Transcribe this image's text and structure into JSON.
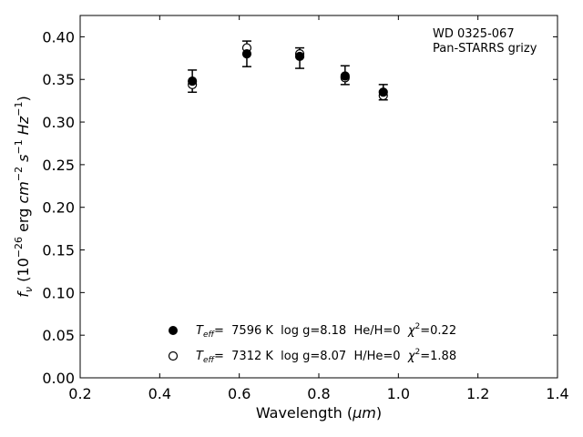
{
  "chart_data": {
    "type": "scatter",
    "xlabel_text": "Wavelength (",
    "xlabel_unit": "μm",
    "xlabel_close": ")",
    "ylabel_f": "f",
    "ylabel_sub": "ν",
    "ylabel_open": " (10",
    "ylabel_exp": "−26",
    "ylabel_erg": " erg ",
    "ylabel_cm": "cm",
    "ylabel_cm_exp": "−2",
    "ylabel_s": " s",
    "ylabel_s_exp": "−1",
    "ylabel_hz": " Hz",
    "ylabel_hz_exp": "−1",
    "ylabel_close": ")",
    "xlim": [
      0.2,
      1.4
    ],
    "ylim": [
      0.0,
      0.425
    ],
    "xticks": [
      "0.2",
      "0.4",
      "0.6",
      "0.8",
      "1.0",
      "1.2",
      "1.4"
    ],
    "xtick_values": [
      0.2,
      0.4,
      0.6,
      0.8,
      1.0,
      1.2,
      1.4
    ],
    "yticks": [
      "0.00",
      "0.05",
      "0.10",
      "0.15",
      "0.20",
      "0.25",
      "0.30",
      "0.35",
      "0.40"
    ],
    "ytick_values": [
      0.0,
      0.05,
      0.1,
      0.15,
      0.2,
      0.25,
      0.3,
      0.35,
      0.4
    ],
    "grid": false,
    "annotation": [
      "WD 0325-067",
      "Pan-STARRS grizy"
    ],
    "observed": {
      "x": [
        0.482,
        0.619,
        0.752,
        0.866,
        0.962
      ],
      "y": [
        0.348,
        0.38,
        0.375,
        0.355,
        0.335
      ],
      "err": [
        0.013,
        0.015,
        0.012,
        0.011,
        0.009
      ]
    },
    "series": [
      {
        "marker": "filled-circle",
        "teff_label": "T",
        "teff_sub": "eff",
        "text1": "=  7596 K  log g=8.18  He/H=0  ",
        "chi": "χ",
        "chi_exp": "2",
        "text2": "=0.22",
        "x": [
          0.482,
          0.619,
          0.752,
          0.866,
          0.962
        ],
        "y": [
          0.348,
          0.38,
          0.377,
          0.354,
          0.335
        ]
      },
      {
        "marker": "open-circle",
        "teff_label": "T",
        "teff_sub": "eff",
        "text1": "=  7312 K  log g=8.07  H/He=0  ",
        "chi": "χ",
        "chi_exp": "2",
        "text2": "=1.88",
        "x": [
          0.482,
          0.619,
          0.752,
          0.866,
          0.962
        ],
        "y": [
          0.344,
          0.387,
          0.38,
          0.352,
          0.331
        ]
      }
    ],
    "legend_position": "lower-center",
    "colors": {
      "marker": "#000000",
      "axis": "#000000"
    }
  }
}
